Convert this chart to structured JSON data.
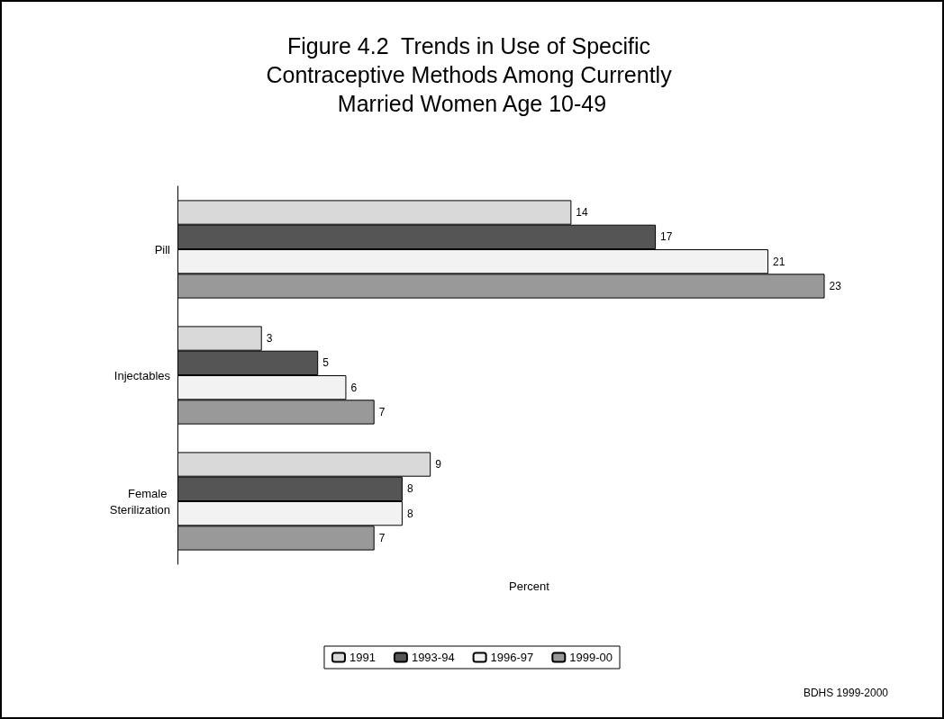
{
  "chart_data": {
    "type": "bar",
    "orientation": "horizontal",
    "title": "Figure 4.2  Trends in Use of Specific Contraceptive Methods Among Currently Married Women Age 10-49",
    "xlabel": "Percent",
    "categories": [
      "Pill",
      "Injectables",
      "Female Sterilization"
    ],
    "series": [
      {
        "name": "1991",
        "color": "#d9d9d9",
        "values": [
          14,
          3,
          9
        ]
      },
      {
        "name": "1993-94",
        "color": "#555555",
        "values": [
          17,
          5,
          8
        ]
      },
      {
        "name": "1996-97",
        "color": "#f2f2f2",
        "values": [
          21,
          6,
          8
        ]
      },
      {
        "name": "1999-00",
        "color": "#999999",
        "values": [
          23,
          7,
          7
        ]
      }
    ],
    "data_labels": true,
    "legend": "bottom",
    "grid": false,
    "tick_labels": "y",
    "annotations": [
      "BDHS 1999-2000"
    ]
  }
}
